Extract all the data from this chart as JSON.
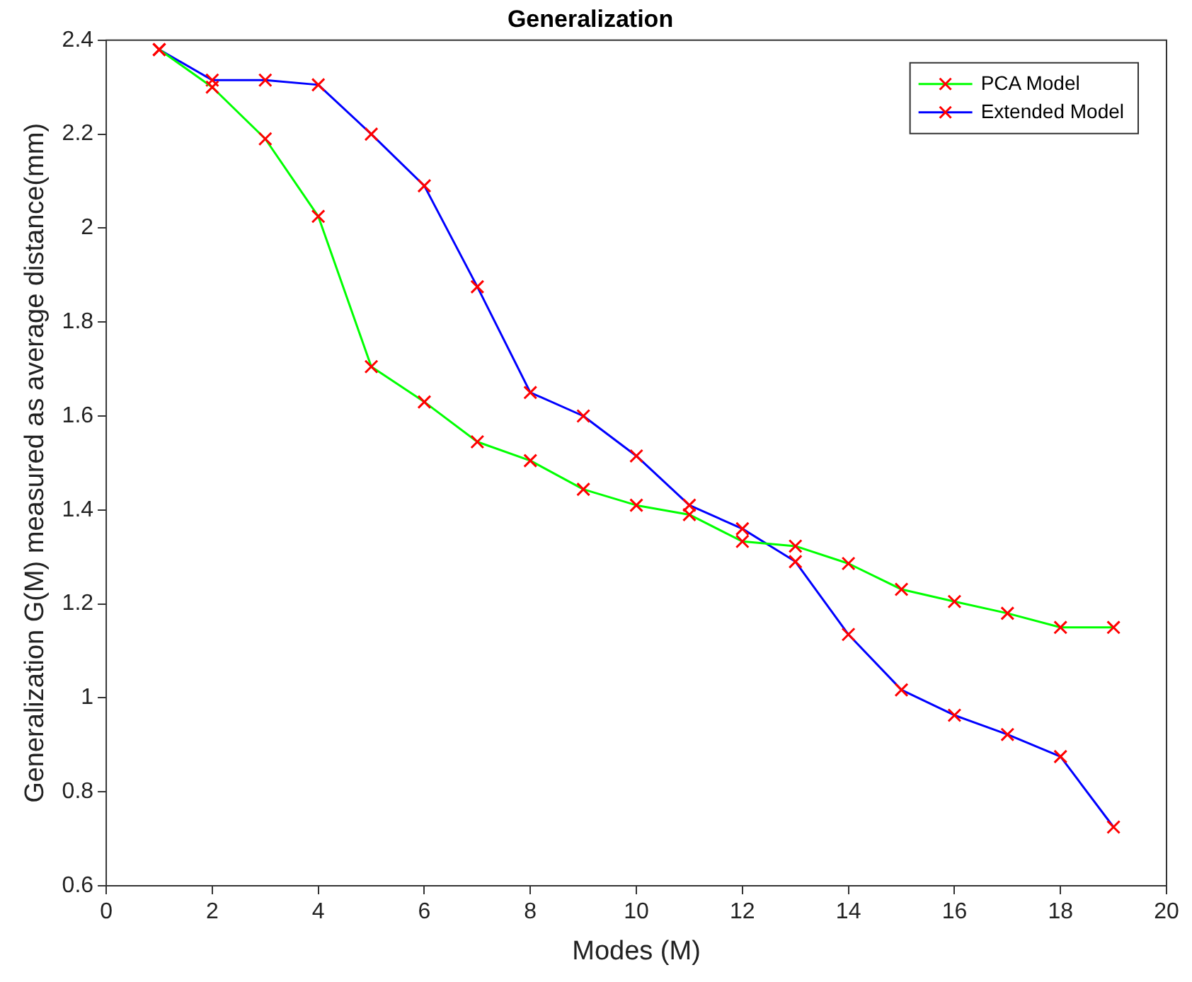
{
  "chart_data": {
    "type": "line",
    "title": "Generalization",
    "xlabel": "Modes (M)",
    "ylabel": "Generalization G(M) measured as average distance(mm)",
    "x": [
      1,
      2,
      3,
      4,
      5,
      6,
      7,
      8,
      9,
      10,
      11,
      12,
      13,
      14,
      15,
      16,
      17,
      18,
      19
    ],
    "series": [
      {
        "name": "PCA Model",
        "color": "#00ff00",
        "values": [
          2.38,
          2.3,
          2.19,
          2.025,
          1.705,
          1.63,
          1.545,
          1.505,
          1.444,
          1.41,
          1.39,
          1.333,
          1.323,
          1.286,
          1.231,
          1.205,
          1.18,
          1.15,
          1.15
        ]
      },
      {
        "name": "Extended Model",
        "color": "#0000ff",
        "values": [
          2.38,
          2.315,
          2.315,
          2.305,
          2.2,
          2.09,
          1.875,
          1.65,
          1.6,
          1.515,
          1.41,
          1.36,
          1.29,
          1.135,
          1.017,
          0.963,
          0.922,
          0.875,
          0.725
        ]
      }
    ],
    "xlim": [
      0,
      20
    ],
    "xticks": [
      0,
      2,
      4,
      6,
      8,
      10,
      12,
      14,
      16,
      18,
      20
    ],
    "ylim": [
      0.6,
      2.4
    ],
    "yticks": [
      0.6,
      0.8,
      1,
      1.2,
      1.4,
      1.6,
      1.8,
      2,
      2.2,
      2.4
    ],
    "grid": false,
    "legend": "top right",
    "marker": "cross",
    "line_style": "solid"
  }
}
